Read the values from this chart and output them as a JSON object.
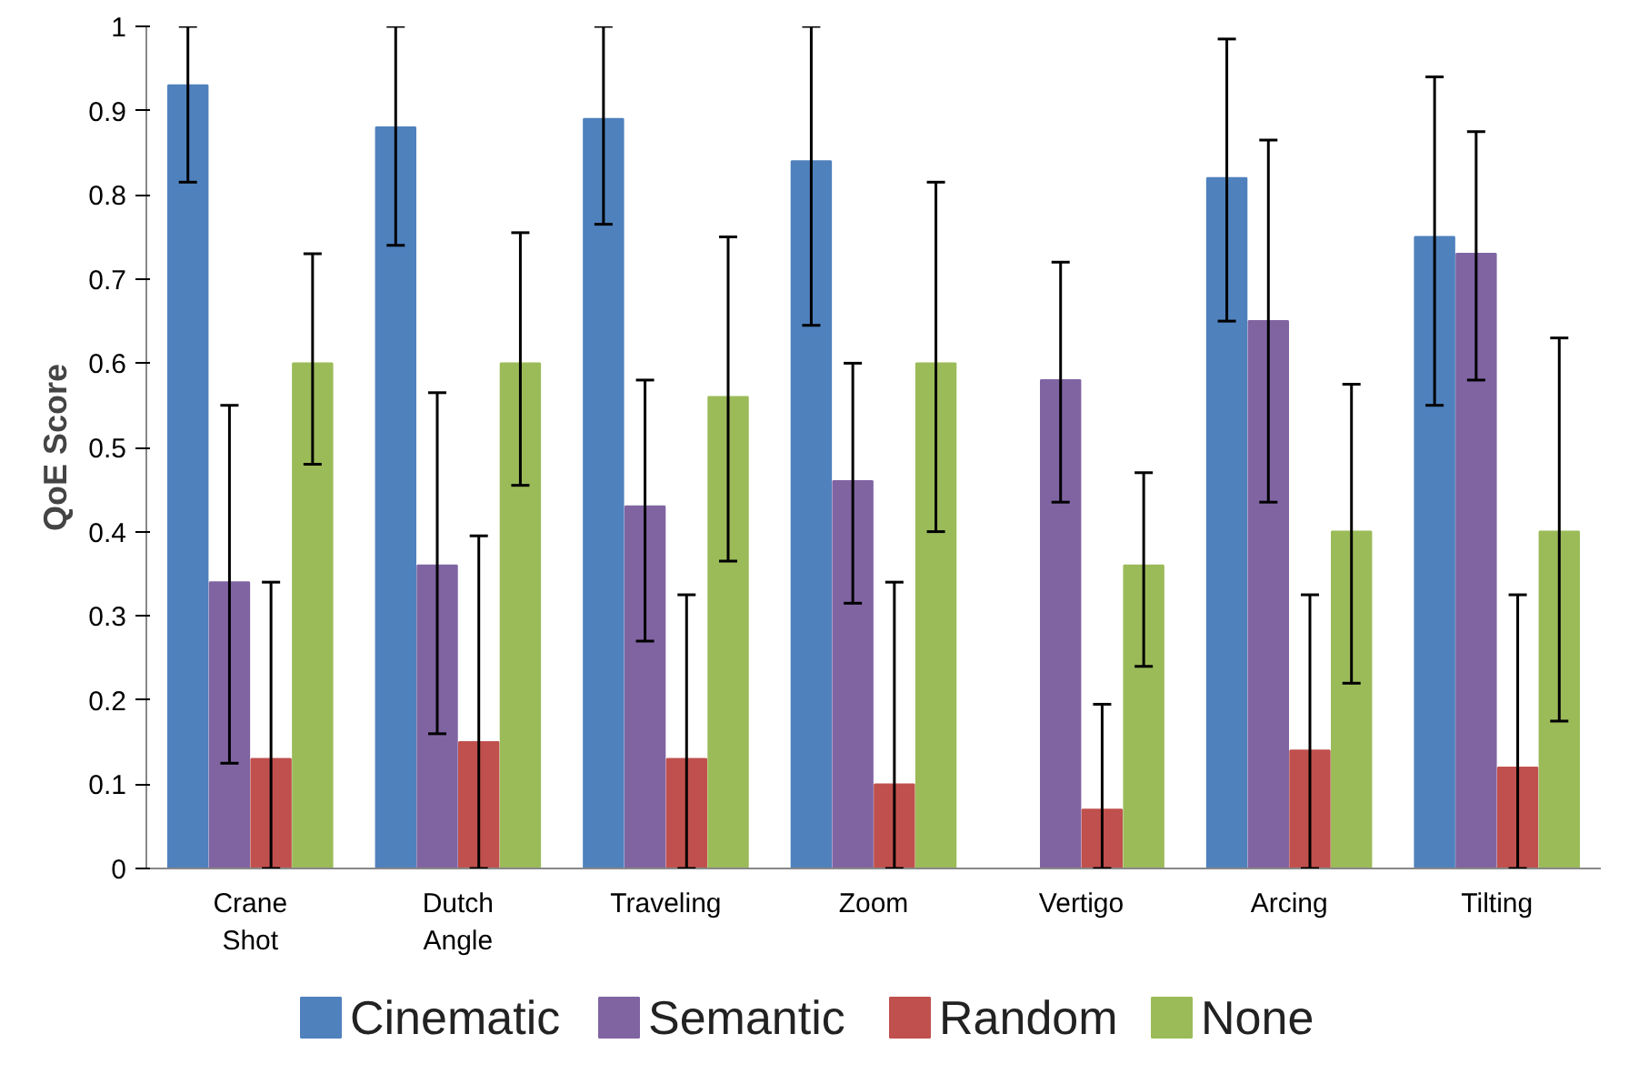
{
  "chart_data": {
    "type": "bar",
    "ylabel": "QoE Score",
    "categories": [
      "Crane Shot",
      "Dutch Angle",
      "Traveling",
      "Zoom",
      "Vertigo",
      "Arcing",
      "Tilting"
    ],
    "series": [
      {
        "name": "Cinematic",
        "color": "#4f81bd",
        "values": [
          0.93,
          0.88,
          0.89,
          0.84,
          0,
          0.82,
          0.75
        ],
        "errors": [
          [
            0.815,
            1
          ],
          [
            0.74,
            1
          ],
          [
            0.765,
            1
          ],
          [
            0.645,
            1
          ],
          null,
          [
            0.65,
            0.985
          ],
          [
            0.55,
            0.94
          ]
        ]
      },
      {
        "name": "Semantic",
        "color": "#8064a2",
        "values": [
          0.34,
          0.36,
          0.43,
          0.46,
          0.58,
          0.65,
          0.73
        ],
        "errors": [
          [
            0.125,
            0.55
          ],
          [
            0.16,
            0.565
          ],
          [
            0.27,
            0.58
          ],
          [
            0.315,
            0.6
          ],
          [
            0.435,
            0.72
          ],
          [
            0.435,
            0.865
          ],
          [
            0.58,
            0.875
          ]
        ]
      },
      {
        "name": "Random",
        "color": "#c0504d",
        "values": [
          0.13,
          0.15,
          0.13,
          0.1,
          0.07,
          0.14,
          0.12
        ],
        "errors": [
          [
            0,
            0.34
          ],
          [
            0,
            0.395
          ],
          [
            0,
            0.325
          ],
          [
            0,
            0.34
          ],
          [
            0,
            0.195
          ],
          [
            0,
            0.325
          ],
          [
            0,
            0.325
          ]
        ]
      },
      {
        "name": "None",
        "color": "#9bbb59",
        "values": [
          0.6,
          0.6,
          0.56,
          0.6,
          0.36,
          0.4,
          0.4
        ],
        "errors": [
          [
            0.48,
            0.73
          ],
          [
            0.455,
            0.755
          ],
          [
            0.365,
            0.75
          ],
          [
            0.4,
            0.815
          ],
          [
            0.24,
            0.47
          ],
          [
            0.22,
            0.575
          ],
          [
            0.175,
            0.63
          ]
        ]
      }
    ],
    "ylim": [
      0,
      1
    ],
    "yticks": [
      0,
      0.1,
      0.2,
      0.3,
      0.4,
      0.5,
      0.6,
      0.7,
      0.8,
      0.9,
      1
    ],
    "grid": false,
    "legend": "bottom"
  }
}
